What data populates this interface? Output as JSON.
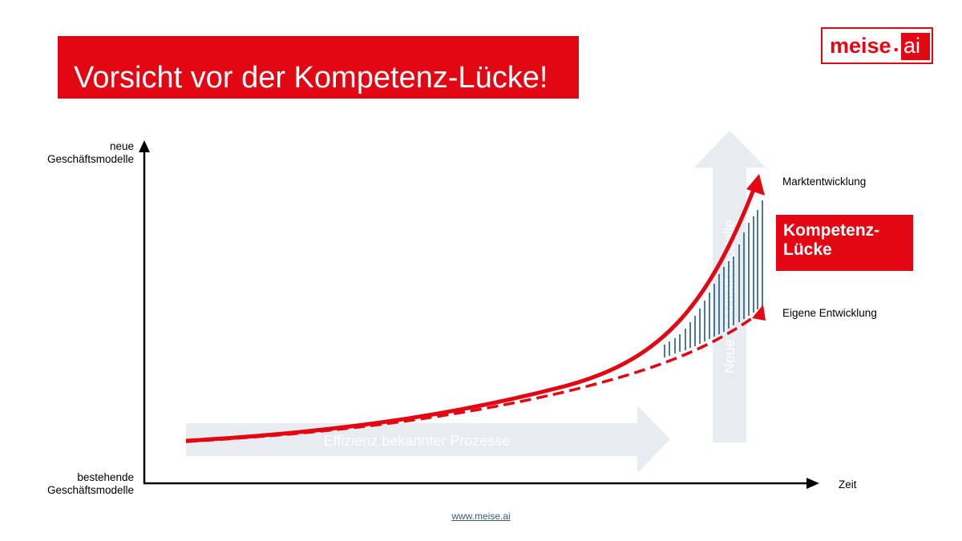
{
  "slide": {
    "title": "Vorsicht vor der Kompetenz-Lücke!",
    "footer_link": "www.meise.ai"
  },
  "logo": {
    "word": "meise",
    "dot": ".",
    "suffix": "ai"
  },
  "colors": {
    "brand_red": "#e30613",
    "arrow_fill": "#e6ecef",
    "hatch": "#1f5a7a"
  },
  "diagram": {
    "y_axis_top_label_line1": "neue",
    "y_axis_top_label_line2": "Geschäftsmodelle",
    "y_axis_bottom_label_line1": "bestehende",
    "y_axis_bottom_label_line2": "Geschäftsmodelle",
    "x_axis_label": "Zeit",
    "horizontal_arrow_label": "Effizienz bekannter Prozesse",
    "vertical_arrow_label": "Neue Geschäftsmodelle",
    "market_curve_label": "Marktentwicklung",
    "own_curve_label": "Eigene Entwicklung",
    "gap_label_line1": "Kompetenz-",
    "gap_label_line2": "Lücke"
  }
}
